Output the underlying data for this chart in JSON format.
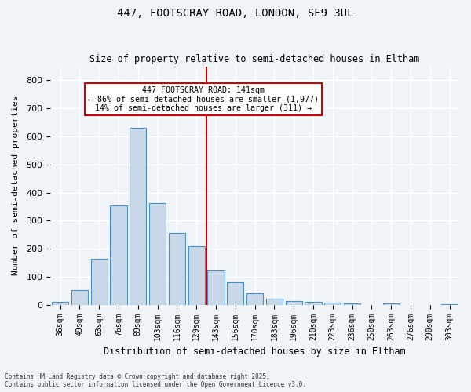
{
  "title1": "447, FOOTSCRAY ROAD, LONDON, SE9 3UL",
  "title2": "Size of property relative to semi-detached houses in Eltham",
  "xlabel": "Distribution of semi-detached houses by size in Eltham",
  "ylabel": "Number of semi-detached properties",
  "categories": [
    "36sqm",
    "49sqm",
    "63sqm",
    "76sqm",
    "89sqm",
    "103sqm",
    "116sqm",
    "129sqm",
    "143sqm",
    "156sqm",
    "170sqm",
    "183sqm",
    "196sqm",
    "210sqm",
    "223sqm",
    "236sqm",
    "250sqm",
    "263sqm",
    "276sqm",
    "290sqm",
    "303sqm"
  ],
  "bar_heights": [
    10,
    52,
    165,
    355,
    630,
    362,
    255,
    210,
    123,
    80,
    40,
    22,
    13,
    10,
    8,
    5,
    0,
    5,
    0,
    0,
    3
  ],
  "bar_color": "#c8d8e8",
  "bar_edge_color": "#4a90c4",
  "property_value": 141,
  "property_label": "447 FOOTSCRAY ROAD: 141sqm",
  "pct_smaller": 86,
  "count_smaller": 1977,
  "pct_larger": 14,
  "count_larger": 311,
  "vline_color": "#cc0000",
  "vline_x_index": 8,
  "annotation_box_color": "#ffffff",
  "annotation_box_edge": "#cc0000",
  "ylim": [
    0,
    850
  ],
  "yticks": [
    0,
    100,
    200,
    300,
    400,
    500,
    600,
    700,
    800
  ],
  "background_color": "#f0f4f8",
  "grid_color": "#ffffff",
  "footer": "Contains HM Land Registry data © Crown copyright and database right 2025.\nContains public sector information licensed under the Open Government Licence v3.0."
}
